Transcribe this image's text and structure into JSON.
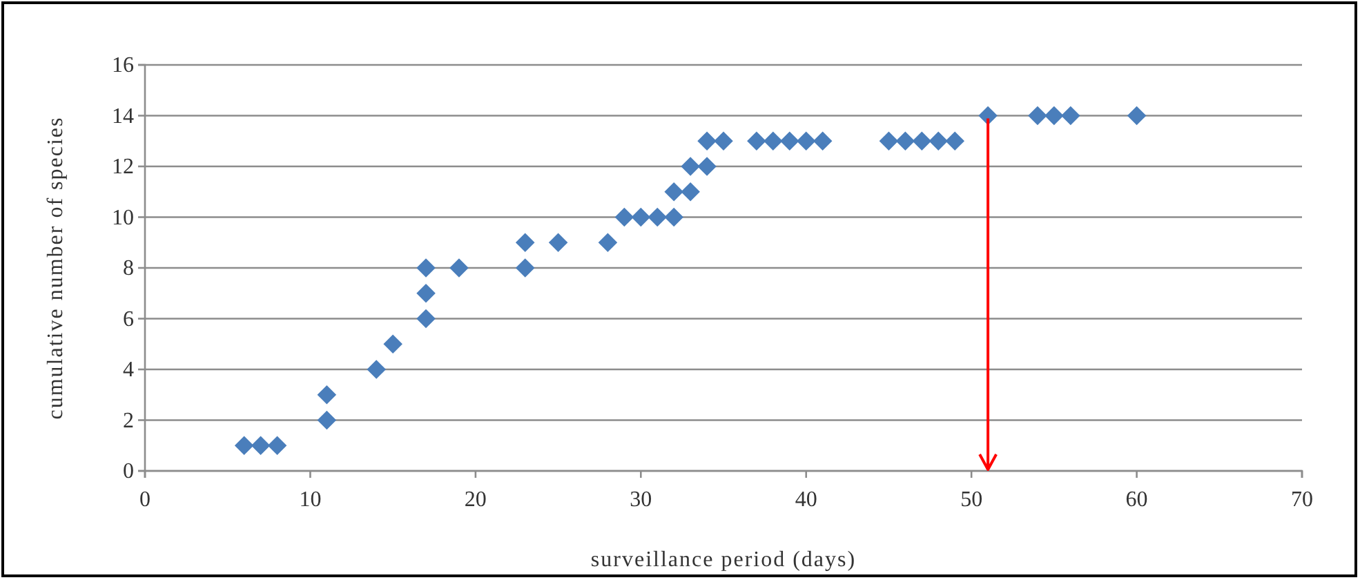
{
  "chart_data": {
    "type": "scatter",
    "xlabel": "surveillance period (days)",
    "ylabel": "cumulative number of species",
    "x": [
      6,
      7,
      8,
      11,
      11,
      14,
      15,
      17,
      17,
      17,
      19,
      23,
      23,
      25,
      28,
      29,
      30,
      31,
      32,
      32,
      33,
      33,
      34,
      34,
      35,
      37,
      38,
      39,
      40,
      41,
      45,
      46,
      47,
      48,
      49,
      51,
      54,
      55,
      56,
      60
    ],
    "values": [
      1,
      1,
      1,
      2,
      3,
      4,
      5,
      6,
      7,
      8,
      8,
      8,
      9,
      9,
      9,
      10,
      10,
      10,
      10,
      11,
      11,
      12,
      12,
      13,
      13,
      13,
      13,
      13,
      13,
      13,
      13,
      13,
      13,
      13,
      13,
      14,
      14,
      14,
      14,
      14
    ],
    "color": "#4a7ebb",
    "marker": "diamond",
    "xlim": [
      0,
      70
    ],
    "xticks": [
      0,
      10,
      20,
      30,
      40,
      50,
      60,
      70
    ],
    "ylim": [
      0,
      16
    ],
    "yticks": [
      0,
      2,
      4,
      6,
      8,
      10,
      12,
      14,
      16
    ],
    "grid": "y",
    "ref_lines": [
      {
        "axis": "x",
        "value": 51,
        "color": "#ff0000"
      }
    ]
  }
}
